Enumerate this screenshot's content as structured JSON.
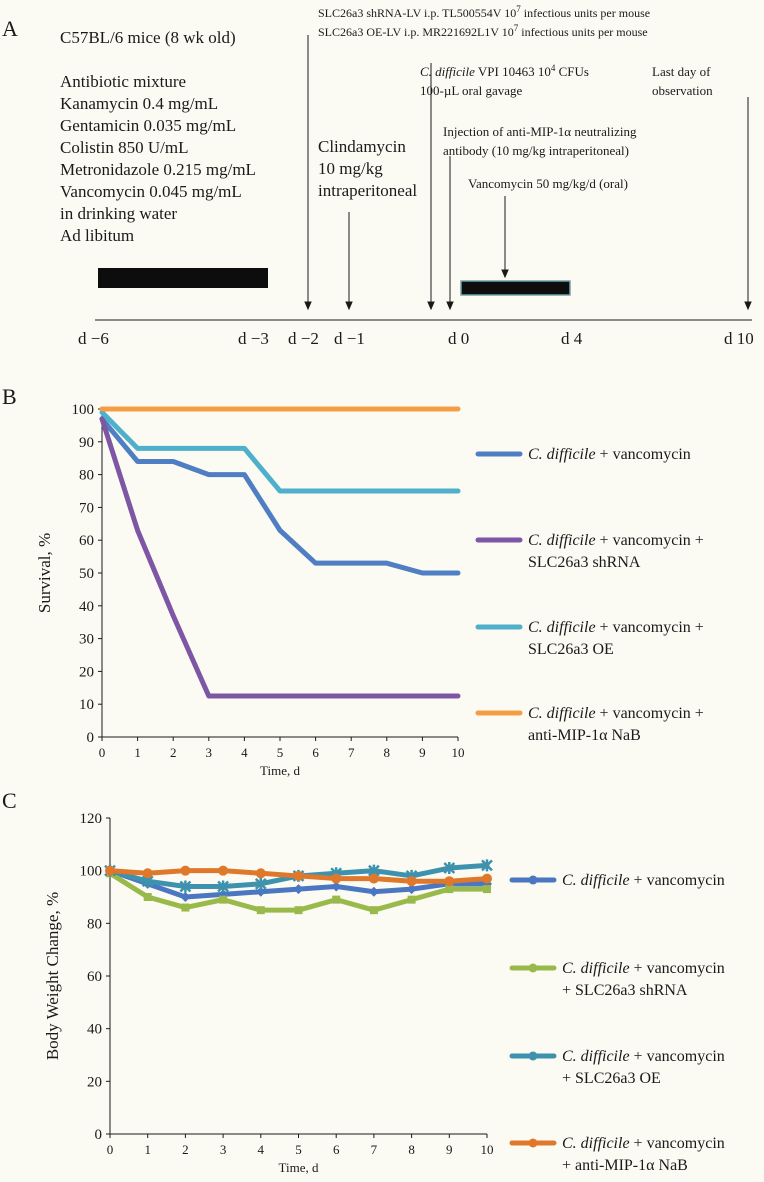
{
  "panel_a": {
    "letter": "A",
    "mice": "C57BL/6 mice (8 wk old)",
    "abx_lines": [
      "Antibiotic mixture",
      "Kanamycin 0.4 mg/mL",
      "Gentamicin 0.035 mg/mL",
      "Colistin 850 U/mL",
      "Metronidazole 0.215 mg/mL",
      "Vancomycin 0.045 mg/mL",
      "in drinking water",
      "Ad libitum"
    ],
    "lv_lines": [
      {
        "pre": "SLC26a3 shRNA-LV i.p. TL500554V 10",
        "sup": "7",
        "post": " infectious units per mouse"
      },
      {
        "pre": "SLC26a3 OE-LV i.p. MR221692L1V 10",
        "sup": "7",
        "post": " infectious units per mouse"
      }
    ],
    "clinda_lines": [
      "Clindamycin",
      "10 mg/kg",
      "intraperitoneal"
    ],
    "cdiff_line1": {
      "italic": "C. difficile",
      "pre": " VPI 10463 10",
      "sup": "4",
      "post": " CFUs"
    },
    "cdiff_line2": "100-µL oral gavage",
    "last_day_lines": [
      "Last day of",
      "observation"
    ],
    "antimip_lines": [
      "Injection of anti-MIP-1α neutralizing",
      "antibody (10 mg/kg intraperitoneal)"
    ],
    "vanco_oral": "Vancomycin 50 mg/kg/d (oral)",
    "day_labels": [
      "d −6",
      "d −3",
      "d −2",
      "d −1",
      "d 0",
      "d 4",
      "d 10"
    ]
  },
  "chart_data": [
    {
      "type": "line",
      "panel": "B",
      "title": "",
      "xlabel": "Time, d",
      "ylabel": "Survival, %",
      "x": [
        0,
        1,
        2,
        3,
        4,
        5,
        6,
        7,
        8,
        9,
        10
      ],
      "xlim": [
        0,
        10
      ],
      "ylim": [
        0,
        100
      ],
      "yticks": [
        0,
        10,
        20,
        30,
        40,
        50,
        60,
        70,
        80,
        90,
        100
      ],
      "series": [
        {
          "name_italic": "C. difficile",
          "name_rest": " + vancomycin",
          "name_line2": "",
          "color": "#4f7ec3",
          "values": [
            97,
            84,
            84,
            80,
            80,
            63,
            53,
            53,
            53,
            50,
            50
          ]
        },
        {
          "name_italic": "C. difficile",
          "name_rest": " + vancomycin +",
          "name_line2": "SLC26a3 shRNA",
          "color": "#7d56a4",
          "values": [
            97,
            63,
            37,
            12.5,
            12.5,
            12.5,
            12.5,
            12.5,
            12.5,
            12.5,
            12.5
          ]
        },
        {
          "name_italic": "C. difficile",
          "name_rest": " + vancomycin +",
          "name_line2": "SLC26a3 OE",
          "color": "#4fb0cb",
          "values": [
            99,
            88,
            88,
            88,
            88,
            75,
            75,
            75,
            75,
            75,
            75
          ]
        },
        {
          "name_italic": "C. difficile",
          "name_rest": " + vancomycin +",
          "name_line2": "anti-MIP-1α NaB",
          "color": "#f59d44",
          "values": [
            100,
            100,
            100,
            100,
            100,
            100,
            100,
            100,
            100,
            100,
            100
          ]
        }
      ]
    },
    {
      "type": "line",
      "panel": "C",
      "title": "",
      "xlabel": "Time, d",
      "ylabel": "Body Weight Change, %",
      "x": [
        0,
        1,
        2,
        3,
        4,
        5,
        6,
        7,
        8,
        9,
        10
      ],
      "xlim": [
        0,
        10
      ],
      "ylim": [
        0,
        120
      ],
      "yticks": [
        0,
        20,
        40,
        60,
        80,
        100,
        120
      ],
      "series": [
        {
          "name_italic": "C. difficile",
          "name_rest": " + vancomycin",
          "name_line2": "",
          "color": "#4a76c2",
          "marker": "diamond",
          "values": [
            100,
            95,
            90,
            91,
            92,
            93,
            94,
            92,
            93,
            95,
            95
          ]
        },
        {
          "name_italic": "C. difficile",
          "name_rest": " + vancomycin",
          "name_line2": "+ SLC26a3 shRNA",
          "color": "#9ab94b",
          "marker": "square",
          "values": [
            99,
            90,
            86,
            89,
            85,
            85,
            89,
            85,
            89,
            93,
            93
          ]
        },
        {
          "name_italic": "C. difficile",
          "name_rest": " + vancomycin",
          "name_line2": "+ SLC26a3 OE",
          "color": "#3e92ad",
          "marker": "star",
          "values": [
            100,
            96,
            94,
            94,
            95,
            98,
            99,
            100,
            98,
            101,
            102
          ]
        },
        {
          "name_italic": "C. difficile",
          "name_rest": " + vancomycin",
          "name_line2": "+ anti-MIP-1α NaB",
          "color": "#e0782c",
          "marker": "circle",
          "values": [
            100,
            99,
            100,
            100,
            99,
            98,
            97,
            97,
            96,
            96,
            97
          ]
        }
      ]
    }
  ]
}
